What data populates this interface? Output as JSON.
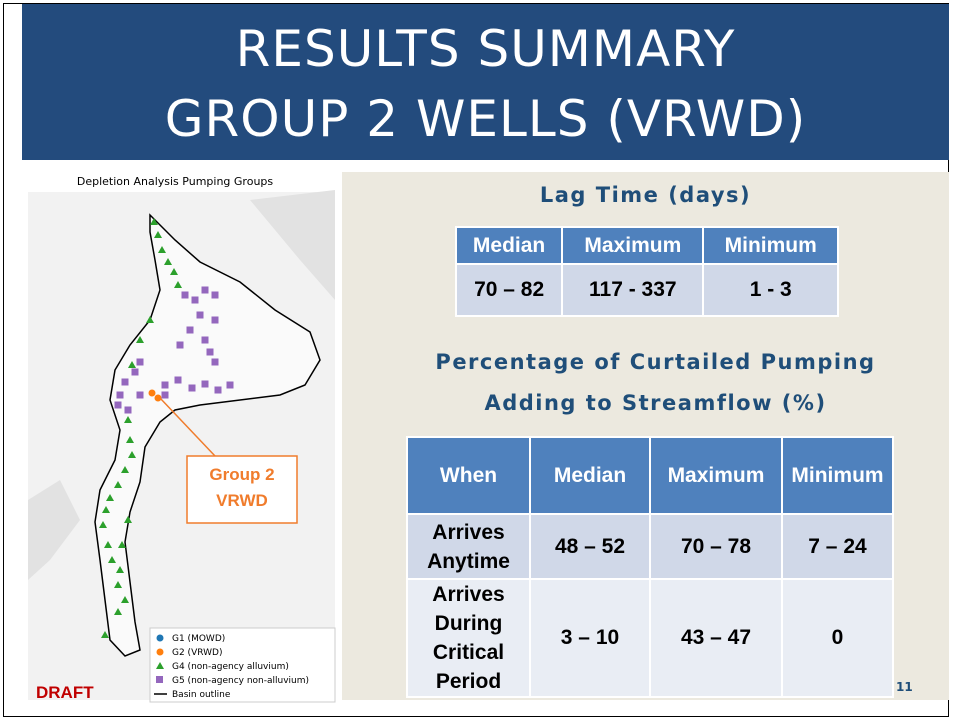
{
  "title": [
    "RESULTS SUMMARY",
    "GROUP 2 WELLS (VRWD)"
  ],
  "map": {
    "title": "Depletion Analysis Pumping Groups",
    "callout": [
      "Group 2",
      "VRWD"
    ],
    "legend": [
      "G1 (MOWD)",
      "G2 (VRWD)",
      "G4 (non-agency alluvium)",
      "G5 (non-agency non-alluvium)",
      "Basin outline"
    ],
    "stamp": "DRAFT"
  },
  "lag": {
    "title": "Lag Time (days)",
    "header": [
      "Median",
      "Maximum",
      "Minimum"
    ],
    "rows": [
      [
        "70 – 82",
        "117 - 337",
        "1 - 3"
      ]
    ]
  },
  "curtailed": {
    "title": [
      "Percentage of Curtailed Pumping",
      "Adding to Streamflow (%)"
    ],
    "header": [
      "When",
      "Median",
      "Maximum",
      "Minimum"
    ],
    "rows": [
      {
        "when": [
          "Arrives",
          "Anytime"
        ],
        "cells": [
          "48 – 52",
          "70 – 78",
          "7 – 24"
        ]
      },
      {
        "when": [
          "Arrives",
          "During",
          "Critical",
          "Period"
        ],
        "cells": [
          "3 – 10",
          "43 – 47",
          "0"
        ]
      }
    ]
  },
  "page_number": "11"
}
